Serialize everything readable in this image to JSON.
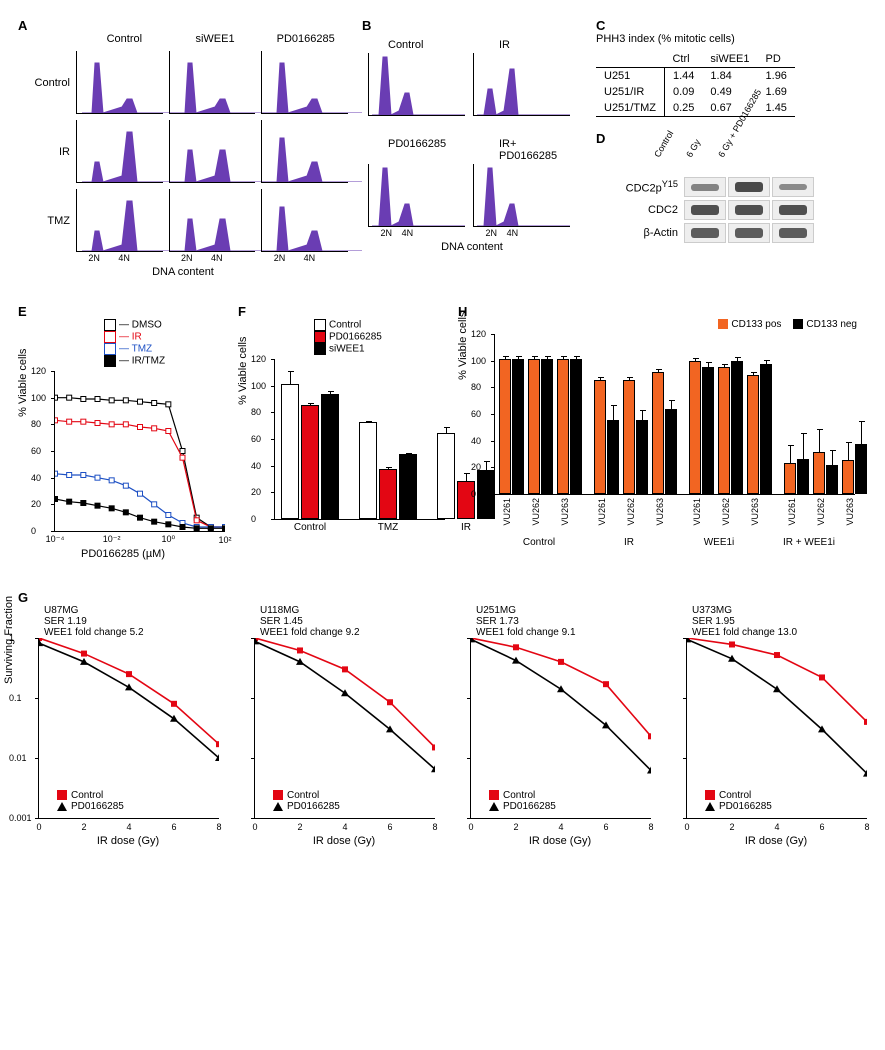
{
  "colors": {
    "histogram_fill": "#6a3db3",
    "red": "#e30613",
    "blue": "#1d50c4",
    "black": "#000000",
    "white": "#ffffff",
    "orange": "#f26522"
  },
  "panelA": {
    "x_axis": "DNA content",
    "x_ticks": [
      "2N",
      "4N"
    ],
    "col_labels": [
      "Control",
      "siWEE1",
      "PD0166285"
    ],
    "row_labels": [
      "Control",
      "IR",
      "TMZ"
    ],
    "shapes": [
      [
        "g1_high",
        "g1_high",
        "g1_high"
      ],
      [
        "g2_high",
        "g2_mid",
        "g1_mid"
      ],
      [
        "g2_high",
        "g2_mid",
        "g1_mid"
      ]
    ]
  },
  "panelB": {
    "x_axis": "DNA content",
    "x_ticks": [
      "2N",
      "4N"
    ],
    "labels": [
      [
        "Control",
        "IR"
      ],
      [
        "PD0166285",
        "IR+\nPD0166285"
      ]
    ],
    "shapes": [
      [
        "tall_g1",
        "g2_rise"
      ],
      [
        "tall_g1",
        "tall_g1"
      ]
    ]
  },
  "panelC": {
    "title": "PHH3 index (% mitotic cells)",
    "cols": [
      "Ctrl",
      "siWEE1",
      "PD"
    ],
    "rows": [
      {
        "label": "U251",
        "vals": [
          "1.44",
          "1.84",
          "1.96"
        ]
      },
      {
        "label": "U251/IR",
        "vals": [
          "0.09",
          "0.49",
          "1.69"
        ]
      },
      {
        "label": "U251/TMZ",
        "vals": [
          "0.25",
          "0.67",
          "1.45"
        ]
      }
    ]
  },
  "panelD": {
    "lanes": [
      "Control",
      "6 Gy",
      "6 Gy + PD0166285"
    ],
    "rows": [
      {
        "label": "CDC2pY15",
        "intensity": [
          0.5,
          1.0,
          0.45
        ]
      },
      {
        "label": "CDC2",
        "intensity": [
          0.95,
          0.95,
          0.95
        ]
      },
      {
        "label": "β-Actin",
        "intensity": [
          0.85,
          0.85,
          0.85
        ]
      }
    ]
  },
  "panelE": {
    "ylabel": "% Viable cells",
    "xlabel": "PD0166285 (µM)",
    "xticks": [
      "10⁻⁴",
      "10⁻²",
      "10⁰",
      "10²"
    ],
    "yticks": [
      0,
      20,
      40,
      60,
      80,
      100,
      120
    ],
    "ylim": [
      0,
      120
    ],
    "legend": [
      {
        "name": "DMSO",
        "color": "#000000",
        "fill": "#ffffff",
        "marker": "square"
      },
      {
        "name": "IR",
        "color": "#e30613",
        "fill": "#ffffff",
        "marker": "square"
      },
      {
        "name": "TMZ",
        "color": "#1d50c4",
        "fill": "#ffffff",
        "marker": "square"
      },
      {
        "name": "IR/TMZ",
        "color": "#000000",
        "fill": "#000000",
        "marker": "square"
      }
    ],
    "series": {
      "x": [
        -4,
        -3.5,
        -3,
        -2.5,
        -2,
        -1.5,
        -1,
        -0.5,
        0,
        0.5,
        1,
        1.5,
        2
      ],
      "DMSO": [
        100,
        100,
        99,
        99,
        98,
        98,
        97,
        96,
        95,
        60,
        10,
        3,
        3
      ],
      "IR": [
        83,
        82,
        82,
        81,
        80,
        80,
        78,
        77,
        75,
        55,
        8,
        3,
        3
      ],
      "TMZ": [
        43,
        42,
        42,
        40,
        38,
        34,
        28,
        20,
        12,
        6,
        3,
        3,
        3
      ],
      "IR/TMZ": [
        24,
        22,
        21,
        19,
        17,
        14,
        10,
        7,
        5,
        3,
        2,
        2,
        2
      ]
    }
  },
  "panelF": {
    "ylabel": "% Viable cells",
    "yticks": [
      0,
      20,
      40,
      60,
      80,
      100,
      120
    ],
    "ylim": [
      0,
      120
    ],
    "legend": [
      {
        "name": "Control",
        "fill": "#ffffff"
      },
      {
        "name": "PD0166285",
        "fill": "#e30613"
      },
      {
        "name": "siWEE1",
        "fill": "#000000"
      }
    ],
    "groups": [
      {
        "label": "Control",
        "vals": [
          100,
          84,
          92
        ],
        "err": [
          10,
          2,
          3
        ]
      },
      {
        "label": "TMZ",
        "vals": [
          71,
          36,
          47
        ],
        "err": [
          2,
          2,
          2
        ]
      },
      {
        "label": "IR",
        "vals": [
          63,
          27,
          35
        ],
        "err": [
          5,
          7,
          8
        ]
      }
    ]
  },
  "panelH": {
    "ylabel": "% Viable cells",
    "yticks": [
      0,
      20,
      40,
      60,
      80,
      100,
      120
    ],
    "ylim": [
      0,
      120
    ],
    "legend": [
      {
        "name": "CD133 pos",
        "fill": "#f26522"
      },
      {
        "name": "CD133 neg",
        "fill": "#000000"
      }
    ],
    "groups": [
      {
        "label": "Control",
        "cells": [
          "VU261",
          "VU262",
          "VU263"
        ],
        "vals": [
          [
            100,
            100
          ],
          [
            100,
            100
          ],
          [
            100,
            100
          ]
        ],
        "err": [
          [
            3,
            3
          ],
          [
            3,
            3
          ],
          [
            3,
            3
          ]
        ]
      },
      {
        "label": "IR",
        "cells": [
          "VU261",
          "VU262",
          "VU263"
        ],
        "vals": [
          [
            84,
            54
          ],
          [
            84,
            54
          ],
          [
            90,
            62
          ]
        ],
        "err": [
          [
            3,
            12
          ],
          [
            3,
            8
          ],
          [
            3,
            8
          ]
        ]
      },
      {
        "label": "WEE1i",
        "cells": [
          "VU261",
          "VU262",
          "VU263"
        ],
        "vals": [
          [
            98,
            94
          ],
          [
            94,
            98
          ],
          [
            88,
            96
          ]
        ],
        "err": [
          [
            3,
            4
          ],
          [
            3,
            4
          ],
          [
            3,
            4
          ]
        ]
      },
      {
        "label": "IR + WEE1i",
        "cells": [
          "VU261",
          "VU262",
          "VU263"
        ],
        "vals": [
          [
            22,
            25
          ],
          [
            30,
            20
          ],
          [
            24,
            36
          ]
        ],
        "err": [
          [
            14,
            20
          ],
          [
            18,
            12
          ],
          [
            14,
            18
          ]
        ]
      }
    ]
  },
  "panelG": {
    "ylabel": "Surviving Fraction",
    "xlabel": "IR dose (Gy)",
    "xticks": [
      0,
      2,
      4,
      6,
      8
    ],
    "yticks": [
      1,
      0.1,
      0.01,
      0.001
    ],
    "ylim": [
      0.001,
      1
    ],
    "legend": [
      "Control",
      "PD0166285"
    ],
    "charts": [
      {
        "cell": "U87MG",
        "ser": "SER 1.19",
        "fc": "WEE1 fold change 5.2",
        "x": [
          0,
          2,
          4,
          6,
          8
        ],
        "control": [
          1,
          0.55,
          0.25,
          0.08,
          0.017
        ],
        "pd": [
          0.82,
          0.4,
          0.15,
          0.045,
          0.01
        ]
      },
      {
        "cell": "U118MG",
        "ser": "SER 1.45",
        "fc": "WEE1 fold change 9.2",
        "x": [
          0,
          2,
          4,
          6,
          8
        ],
        "control": [
          1,
          0.62,
          0.3,
          0.085,
          0.015
        ],
        "pd": [
          0.88,
          0.4,
          0.12,
          0.03,
          0.0065
        ]
      },
      {
        "cell": "U251MG",
        "ser": "SER 1.73",
        "fc": "WEE1 fold change 9.1",
        "x": [
          0,
          2,
          4,
          6,
          8
        ],
        "control": [
          1,
          0.7,
          0.4,
          0.17,
          0.023
        ],
        "pd": [
          0.95,
          0.42,
          0.14,
          0.035,
          0.0062
        ]
      },
      {
        "cell": "U373MG",
        "ser": "SER 1.95",
        "fc": "WEE1 fold change 13.0",
        "x": [
          0,
          2,
          4,
          6,
          8
        ],
        "control": [
          1,
          0.78,
          0.52,
          0.22,
          0.04
        ],
        "pd": [
          0.95,
          0.45,
          0.14,
          0.03,
          0.0055
        ]
      }
    ]
  }
}
